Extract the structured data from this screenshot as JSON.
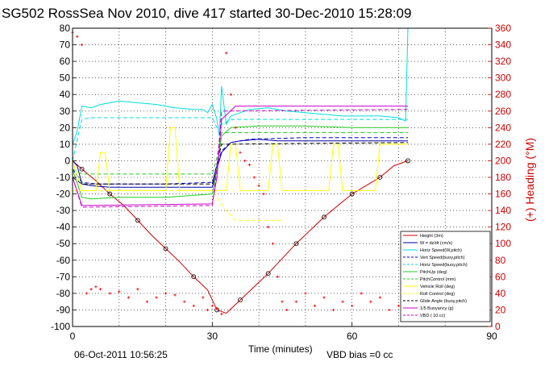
{
  "chart_data": {
    "type": "line",
    "title": "SG502 RossSea Nov 2010, dive 417 started 30-Dec-2010 15:28:09",
    "xlabel": "Time (minutes)",
    "ylabel_right": "(+) Heading (°M)",
    "xlim": [
      0,
      90
    ],
    "ylim": [
      -100,
      80
    ],
    "y2lim": [
      0,
      360
    ],
    "grid": true,
    "legend_position": "bottom-right",
    "x_ticks": [
      "0",
      "30",
      "60",
      "90"
    ],
    "y_ticks": [
      "-100",
      "-90",
      "-80",
      "-70",
      "-60",
      "-50",
      "-40",
      "-30",
      "-20",
      "-10",
      "0",
      "10",
      "20",
      "30",
      "40",
      "50",
      "60",
      "70",
      "80"
    ],
    "y2_ticks": [
      "0",
      "20",
      "40",
      "60",
      "80",
      "100",
      "120",
      "140",
      "160",
      "180",
      "200",
      "220",
      "240",
      "260",
      "280",
      "300",
      "320",
      "340",
      "360"
    ],
    "colors": {
      "axis_left": "#000000",
      "axis_right": "#cc0000",
      "height": "#cc0000",
      "w": "#0000aa",
      "horiz_speed": "#00dddd",
      "vert_speed_model": "#0000cc",
      "horiz_speed_model": "#00dddd",
      "pitch_up": "#22cc22",
      "pitch_control": "#22cc22",
      "vehicle_roll": "#ffff00",
      "roll_control": "#ffff00",
      "glide_angle": "#000000",
      "buoyancy": "#cc00cc",
      "vbd": "#cc00cc",
      "heading": "#ff0000"
    },
    "series": [
      {
        "name": "Height (3m)",
        "key": "height",
        "x": [
          0,
          2,
          5,
          8,
          11,
          14,
          17,
          20,
          23,
          26,
          29,
          31,
          33,
          36,
          39,
          42,
          45,
          48,
          51,
          54,
          57,
          60,
          63,
          66,
          69,
          72
        ],
        "y": [
          0,
          -5,
          -12,
          -20,
          -27,
          -36,
          -45,
          -53,
          -61,
          -70,
          -78,
          -90,
          -92,
          -84,
          -76,
          -68,
          -59,
          -50,
          -42,
          -34,
          -27,
          -20,
          -15,
          -10,
          -3,
          0
        ]
      },
      {
        "name": "W = dz/dt (cm/s)",
        "key": "w",
        "x": [
          0,
          1,
          2,
          4,
          8,
          12,
          16,
          20,
          24,
          28,
          30,
          31,
          32,
          34,
          36,
          40,
          44,
          48,
          52,
          56,
          60,
          64,
          68,
          71,
          72
        ],
        "y": [
          0,
          -3,
          -14,
          -15,
          -16,
          -16,
          -16,
          -16,
          -16,
          -16,
          -16,
          -5,
          5,
          11,
          12,
          13,
          12,
          12,
          12,
          12,
          12,
          12,
          12,
          12,
          12
        ]
      },
      {
        "name": "Horiz Speed(W,pitch)",
        "key": "horiz_speed",
        "x": [
          0,
          1,
          2,
          4,
          6,
          8,
          10,
          14,
          18,
          22,
          26,
          28,
          29,
          30,
          31,
          31.5,
          32,
          33,
          34,
          36,
          38,
          42,
          46,
          50,
          54,
          58,
          62,
          66,
          70,
          71.5,
          72
        ],
        "y": [
          10,
          18,
          33,
          32,
          34,
          35,
          36,
          35,
          34,
          32,
          31,
          31,
          29,
          34,
          25,
          15,
          45,
          22,
          27,
          29,
          31,
          32,
          30,
          29,
          28,
          27,
          27,
          27,
          26,
          24,
          80
        ]
      },
      {
        "name": "Vert Speed(buoy,pitch)",
        "key": "vert_speed_model",
        "x": [
          0,
          2,
          5,
          10,
          20,
          30,
          31,
          32,
          34,
          38,
          50,
          60,
          72
        ],
        "y": [
          -5,
          -13,
          -14,
          -14,
          -14,
          -13,
          -3,
          6,
          11,
          13,
          14,
          14,
          14
        ]
      },
      {
        "name": "Horiz Speed(buoy,pitch)",
        "key": "horiz_speed_model",
        "x": [
          0,
          2,
          4,
          30,
          31,
          32,
          34,
          72
        ],
        "y": [
          0,
          25,
          26,
          26,
          20,
          22,
          25,
          25
        ]
      },
      {
        "name": "PitchUp (deg)",
        "key": "pitch_up",
        "x": [
          0,
          2,
          4,
          10,
          20,
          30,
          31,
          32,
          34,
          40,
          50,
          60,
          72
        ],
        "y": [
          -5,
          -22,
          -23,
          -22,
          -22,
          -20,
          -5,
          15,
          20,
          21,
          21,
          20,
          20
        ]
      },
      {
        "name": "PitchControl (mm)",
        "key": "pitch_control",
        "x": [
          0,
          2,
          30,
          31,
          32,
          72
        ],
        "y": [
          -5,
          -8,
          -8,
          2,
          17,
          17
        ]
      },
      {
        "name": "Vehicle Roll (deg)",
        "key": "vehicle_roll",
        "x": [
          0,
          2,
          5,
          6,
          7,
          8,
          20,
          21,
          22,
          23,
          33,
          34,
          35,
          36,
          37,
          42,
          43,
          44,
          45,
          46,
          55,
          56,
          57,
          58,
          65,
          66,
          67,
          72
        ],
        "y": [
          0,
          -18,
          -18,
          5,
          5,
          -18,
          -18,
          20,
          20,
          -18,
          -18,
          10,
          10,
          -18,
          -18,
          -18,
          10,
          10,
          -18,
          -18,
          -18,
          10,
          10,
          -18,
          -18,
          10,
          10,
          10
        ]
      },
      {
        "name": "Roll Control (deg)",
        "key": "roll_control",
        "x": [
          0,
          30,
          31,
          33,
          35,
          45
        ],
        "y": [
          -18,
          -18,
          -22,
          -30,
          -36,
          -36
        ]
      },
      {
        "name": "Glide Angle (buoy,pitch)",
        "key": "glide_angle",
        "x": [
          0,
          2,
          30,
          32,
          72
        ],
        "y": [
          -10,
          -14,
          -14,
          10,
          11
        ]
      },
      {
        "name": "1/5 Buoyancy (g)",
        "key": "buoyancy",
        "x": [
          0,
          2,
          30,
          31,
          32,
          35,
          72
        ],
        "y": [
          -10,
          -27,
          -26,
          -10,
          25,
          33,
          33
        ]
      },
      {
        "name": "VBD ( 10 cc)",
        "key": "vbd",
        "x": [
          0,
          2,
          30,
          31,
          32,
          72
        ],
        "y": [
          -10,
          -28,
          -27,
          -5,
          30,
          31
        ]
      }
    ],
    "heading_series": {
      "name": "(+) Heading (°M)",
      "x": [
        0,
        1,
        2,
        3,
        4,
        5,
        6,
        8,
        10,
        12,
        14,
        16,
        18,
        20,
        22,
        24,
        26,
        28,
        29,
        30,
        31,
        32,
        33,
        34,
        35,
        36,
        37,
        38,
        39,
        40,
        41,
        42,
        43,
        44,
        45,
        46,
        48,
        50,
        52,
        54,
        56,
        58,
        60,
        62,
        64,
        66,
        68,
        70,
        72
      ],
      "y": [
        355,
        350,
        340,
        40,
        45,
        48,
        45,
        40,
        42,
        35,
        45,
        30,
        35,
        40,
        38,
        30,
        25,
        35,
        20,
        25,
        22,
        15,
        330,
        280,
        240,
        210,
        200,
        195,
        180,
        170,
        160,
        120,
        100,
        60,
        30,
        20,
        30,
        40,
        25,
        35,
        20,
        30,
        25,
        40,
        30,
        35,
        20,
        25,
        30
      ]
    },
    "annotations": [
      "06-Oct-2011 10:56:25",
      "VBD bias =0 cc"
    ]
  }
}
